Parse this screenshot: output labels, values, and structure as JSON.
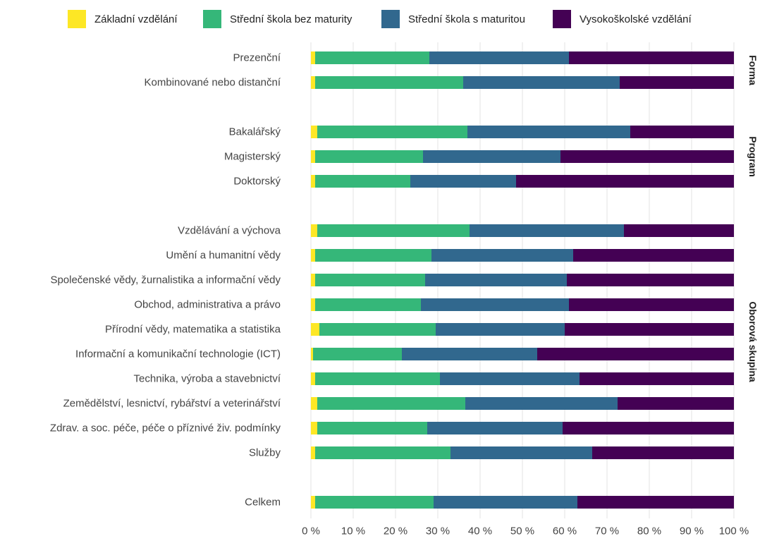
{
  "chart_data": {
    "type": "bar",
    "orientation": "horizontal",
    "stacked": true,
    "percent": true,
    "xlim": [
      0,
      100
    ],
    "ticks": [
      "0 %",
      "10 %",
      "20 %",
      "30 %",
      "40 %",
      "50 %",
      "60 %",
      "70 %",
      "80 %",
      "90 %",
      "100 %"
    ],
    "grid": true,
    "legend_position": "top",
    "series": [
      {
        "name": "Základní vzdělání",
        "color": "#fde725"
      },
      {
        "name": "Střední škola bez maturity",
        "color": "#35b779"
      },
      {
        "name": "Střední škola s maturitou",
        "color": "#31688e"
      },
      {
        "name": "Vysokoškolské vzdělání",
        "color": "#440154"
      }
    ],
    "groups": [
      {
        "facet": "Forma",
        "rows": [
          {
            "label": "Prezenční",
            "values": [
              1,
              27,
              33,
              39
            ]
          },
          {
            "label": "Kombinované nebo distanční",
            "values": [
              1,
              35,
              37,
              27
            ]
          }
        ]
      },
      {
        "facet": "Program",
        "rows": [
          {
            "label": "Bakalářský",
            "values": [
              1.5,
              35.5,
              38.5,
              24.5
            ]
          },
          {
            "label": "Magisterský",
            "values": [
              1,
              25.5,
              32.5,
              41
            ]
          },
          {
            "label": "Doktorský",
            "values": [
              1,
              22.5,
              25,
              51.5
            ]
          }
        ]
      },
      {
        "facet": "Oborová skupina",
        "rows": [
          {
            "label": "Vzdělávání a výchova",
            "values": [
              1.5,
              36,
              36.5,
              26
            ]
          },
          {
            "label": "Umění a humanitní vědy",
            "values": [
              1,
              27.5,
              33.5,
              38
            ]
          },
          {
            "label": "Společenské vědy, žurnalistika a informační vědy",
            "values": [
              1,
              26,
              33.5,
              39.5
            ]
          },
          {
            "label": "Obchod, administrativa a právo",
            "values": [
              1,
              25,
              35,
              39
            ]
          },
          {
            "label": "Přírodní vědy, matematika a statistika",
            "values": [
              2,
              27.5,
              30.5,
              40
            ]
          },
          {
            "label": "Informační a komunikační technologie (ICT)",
            "values": [
              0.5,
              21,
              32,
              46.5
            ]
          },
          {
            "label": "Technika, výroba a stavebnictví",
            "values": [
              1,
              29.5,
              33,
              36.5
            ]
          },
          {
            "label": "Zemědělství, lesnictví, rybářství a veterinářství",
            "values": [
              1.5,
              35,
              36,
              27.5
            ]
          },
          {
            "label": "Zdrav. a soc. péče, péče o příznivé živ. podmínky",
            "values": [
              1.5,
              26,
              32,
              40.5
            ]
          },
          {
            "label": "Služby",
            "values": [
              1,
              32,
              33.5,
              33.5
            ]
          }
        ]
      },
      {
        "facet": "",
        "rows": [
          {
            "label": "Celkem",
            "values": [
              1,
              28,
              34,
              37
            ]
          }
        ]
      }
    ]
  }
}
